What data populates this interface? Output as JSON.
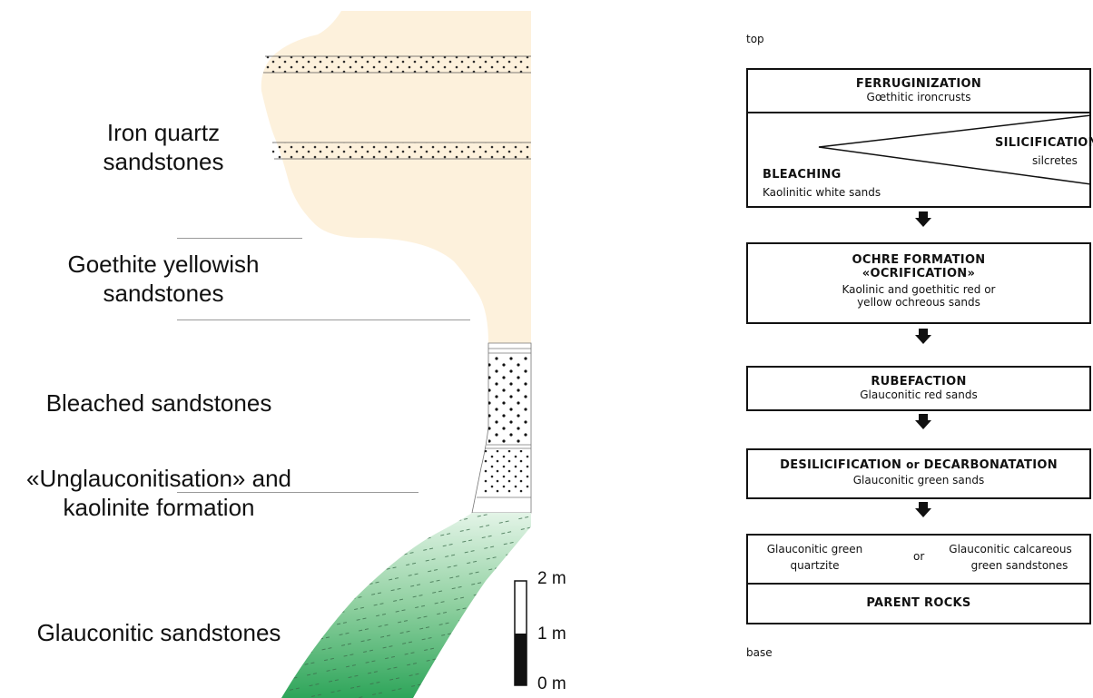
{
  "section": {
    "labels": {
      "iron_quartz": "Iron quartz\nsandstones",
      "goethite": "Goethite yellowish\nsandstones",
      "bleached": "Bleached sandstones",
      "unglauconitisation": "«Unglauconitisation» and\nkaolinite formation",
      "glauconitic": "Glauconitic sandstones"
    },
    "scale": {
      "top": "2 m",
      "mid": "1 m",
      "bottom": "0 m"
    },
    "colors": {
      "red": "#e3342f",
      "orange": "#ef6a2c",
      "yellow": "#f7c96e",
      "pale": "#fbeed5",
      "green_light": "#d9f0df",
      "green_dark": "#2fa35a"
    }
  },
  "flow": {
    "top_label": "top",
    "base_label": "base",
    "box1": {
      "title": "FERRUGINIZATION",
      "sub": "Gœthitic ironcrusts"
    },
    "box2": {
      "silicification": "SILICIFICATION",
      "silcretes": "silcretes",
      "bleaching": "BLEACHING",
      "bleaching_sub": "Kaolinitic white sands"
    },
    "box3": {
      "title1": "OCHRE FORMATION",
      "title2": "«OCRIFICATION»",
      "sub1": "Kaolinic and goethitic red or",
      "sub2": "yellow ochreous sands"
    },
    "box4": {
      "title": "RUBEFACTION",
      "sub": "Glauconitic red sands"
    },
    "box5": {
      "title_a": "DESILICIFICATION",
      "or": "or",
      "title_b": "DECARBONATATION",
      "sub": "Glauconitic green sands"
    },
    "box6": {
      "left1": "Glauconitic green",
      "left2": "quartzite",
      "or": "or",
      "right1": "Glauconitic calcareous",
      "right2": "green sandstones"
    },
    "box7": {
      "title": "PARENT ROCKS"
    }
  }
}
